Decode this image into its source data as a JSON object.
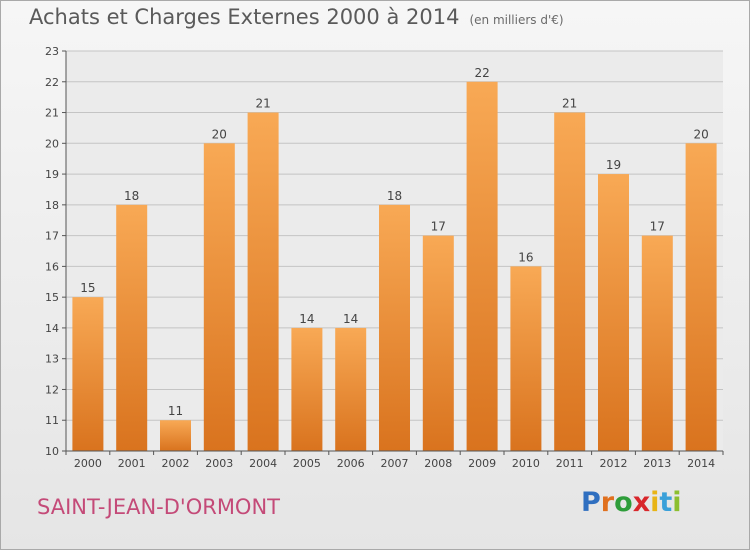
{
  "header": {
    "title": "Achats et Charges Externes 2000 à 2014",
    "subtitle": "(en milliers d'€)"
  },
  "footer": {
    "city": "SAINT-JEAN-D'ORMONT",
    "brand": {
      "letters": [
        "P",
        "r",
        "o",
        "x",
        "i",
        "t",
        "i"
      ],
      "colors": [
        "#2f6fc0",
        "#e0701e",
        "#2e9d3a",
        "#d8262b",
        "#e8b415",
        "#3aa0d9",
        "#8cbf2f"
      ]
    }
  },
  "chart_data": {
    "type": "bar",
    "title": "Achats et Charges Externes 2000 à 2014",
    "subtitle": "(en milliers d'€)",
    "categories": [
      "2000",
      "2001",
      "2002",
      "2003",
      "2004",
      "2005",
      "2006",
      "2007",
      "2008",
      "2009",
      "2010",
      "2011",
      "2012",
      "2013",
      "2014"
    ],
    "values": [
      15,
      18,
      11,
      20,
      21,
      14,
      14,
      18,
      17,
      22,
      16,
      21,
      19,
      17,
      20
    ],
    "data_labels": [
      "15",
      "18",
      "11",
      "20",
      "21",
      "14",
      "14",
      "18",
      "17",
      "22",
      "16",
      "21",
      "19",
      "17",
      "20"
    ],
    "ylim": [
      10,
      23
    ],
    "yticks": [
      10,
      11,
      12,
      13,
      14,
      15,
      16,
      17,
      18,
      19,
      20,
      21,
      22,
      23
    ],
    "ytick_labels": [
      "10",
      "11",
      "12",
      "13",
      "14",
      "15",
      "16",
      "17",
      "18",
      "19",
      "20",
      "21",
      "22",
      "23"
    ],
    "xlabel": "",
    "ylabel": "",
    "grid": "horizontal",
    "legend": "none",
    "bar_color_top": "#f8a955",
    "bar_color_bottom": "#d9731e"
  }
}
